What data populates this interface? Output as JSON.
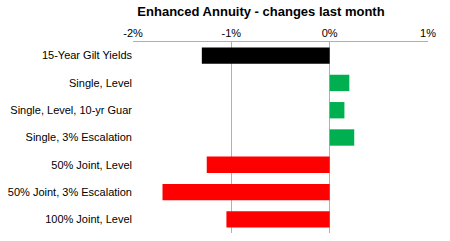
{
  "chart_data": {
    "type": "bar",
    "orientation": "horizontal",
    "title": "Enhanced Annuity - changes last month",
    "categories": [
      "15-Year Gilt Yields",
      "Single, Level",
      "Single, Level, 10-yr Guar",
      "Single, 3% Escalation",
      "50% Joint, Level",
      "50% Joint, 3% Escalation",
      "100% Joint, Level"
    ],
    "values": [
      -1.3,
      0.2,
      0.15,
      0.25,
      -1.25,
      -1.7,
      -1.05
    ],
    "colors": [
      "#000000",
      "#00b050",
      "#00b050",
      "#00b050",
      "#ff0000",
      "#ff0000",
      "#ff0000"
    ],
    "xlim": [
      -2,
      1
    ],
    "xticks": [
      {
        "value": -2,
        "label": "-2%"
      },
      {
        "value": -1,
        "label": "-1%"
      },
      {
        "value": 0,
        "label": "0%"
      },
      {
        "value": 1,
        "label": "1%"
      }
    ],
    "grid": true
  }
}
